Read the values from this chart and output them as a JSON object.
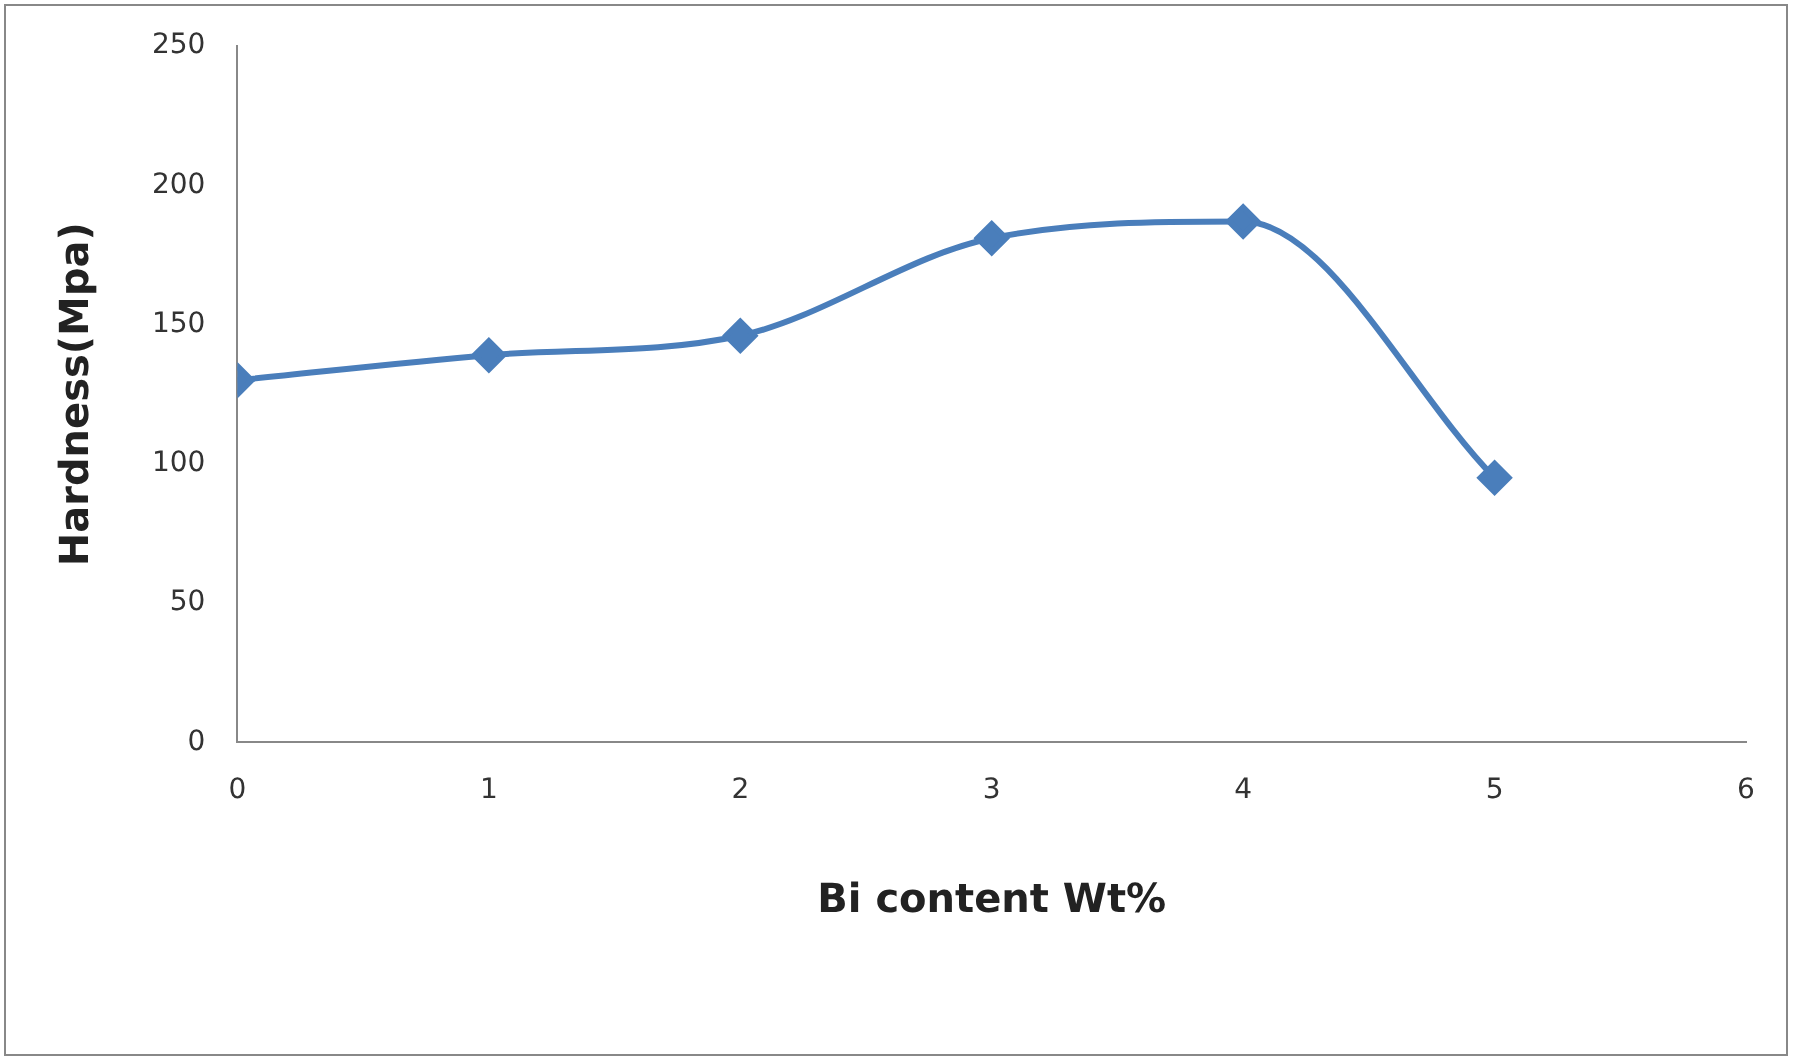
{
  "chart_data": {
    "type": "line",
    "xlabel": "Bi content Wt%",
    "ylabel": "Hardness(Mpa)",
    "x": [
      0,
      1,
      2,
      3,
      4,
      5
    ],
    "series": [
      {
        "color": "#4a7ebb",
        "values": [
          130,
          139,
          146,
          181,
          187,
          95
        ]
      }
    ],
    "xlim": [
      0,
      6
    ],
    "xticks": [
      0,
      1,
      2,
      3,
      4,
      5,
      6
    ],
    "ylim": [
      0,
      250
    ],
    "yticks": [
      0,
      50,
      100,
      150,
      200,
      250
    ],
    "grid": false,
    "legend": false,
    "marker": "diamond",
    "line_style": "solid"
  }
}
